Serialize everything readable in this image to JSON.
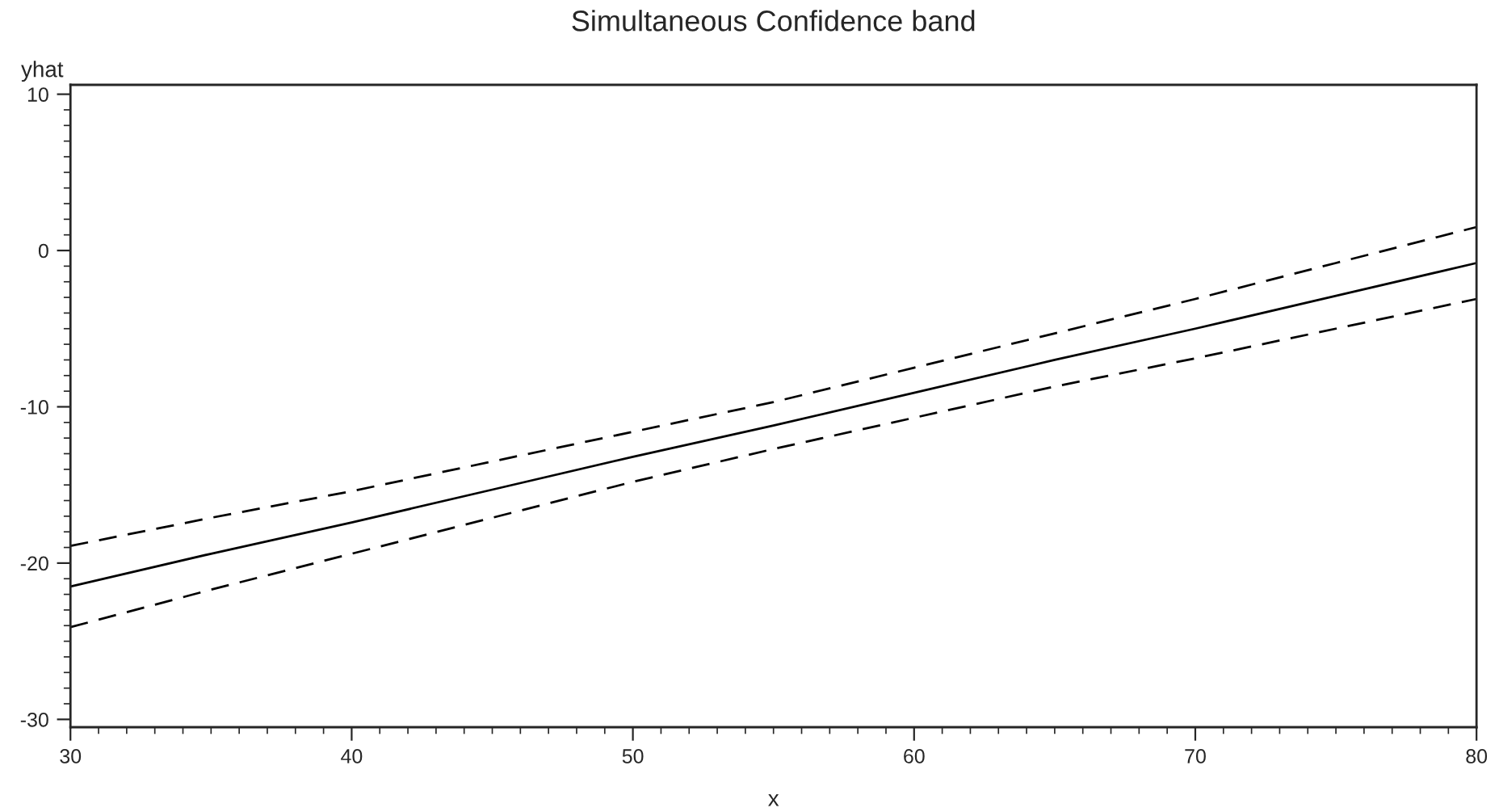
{
  "chart_data": {
    "type": "line",
    "title": "Simultaneous Confidence band",
    "xlabel": "x",
    "ylabel": "yhat",
    "x": [
      30,
      35,
      40,
      45,
      50,
      55,
      60,
      65,
      70,
      75,
      80
    ],
    "series": [
      {
        "color": "#000000",
        "line_style": "solid",
        "values": [
          -21.5,
          -19.4,
          -17.4,
          -15.3,
          -13.2,
          -11.2,
          -9.1,
          -7.0,
          -5.0,
          -2.9,
          -0.8
        ]
      },
      {
        "color": "#000000",
        "line_style": "dashed",
        "values": [
          -18.9,
          -17.1,
          -15.4,
          -13.5,
          -11.6,
          -9.7,
          -7.5,
          -5.3,
          -3.1,
          -0.8,
          1.5
        ]
      },
      {
        "color": "#000000",
        "line_style": "dashed",
        "values": [
          -24.1,
          -21.7,
          -19.4,
          -17.1,
          -14.8,
          -12.7,
          -10.7,
          -8.7,
          -6.9,
          -5.0,
          -3.1
        ]
      }
    ],
    "xlim": [
      30,
      80
    ],
    "xticks": [
      30,
      40,
      50,
      60,
      70,
      80
    ],
    "ylim": [
      -30.5,
      10.6
    ],
    "yticks": [
      -30,
      -20,
      -10,
      0,
      10
    ],
    "grid": false,
    "marker": "none"
  }
}
